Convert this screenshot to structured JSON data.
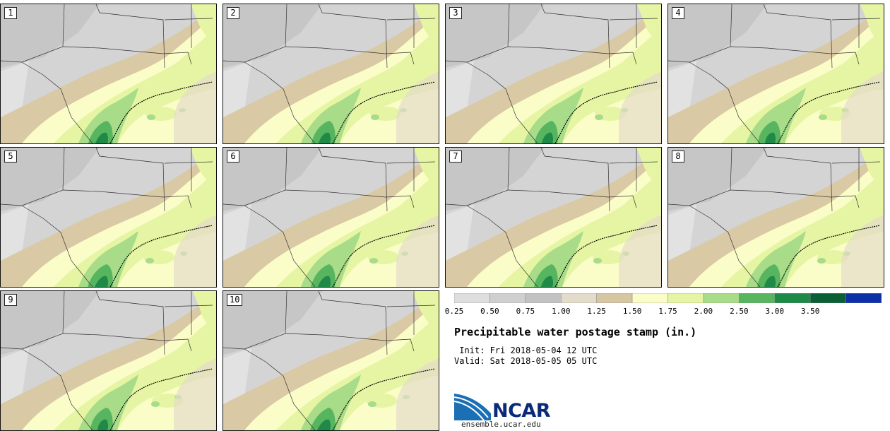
{
  "panels": [
    {
      "label": "1"
    },
    {
      "label": "2"
    },
    {
      "label": "3"
    },
    {
      "label": "4"
    },
    {
      "label": "5"
    },
    {
      "label": "6"
    },
    {
      "label": "7"
    },
    {
      "label": "8"
    },
    {
      "label": "9"
    },
    {
      "label": "10"
    }
  ],
  "colorbar": {
    "ticks": [
      "0.25",
      "0.50",
      "0.75",
      "1.00",
      "1.25",
      "1.50",
      "1.75",
      "2.00",
      "2.50",
      "3.00",
      "3.50"
    ],
    "colors": [
      "#dedede",
      "#cfcfcf",
      "#c2c2c2",
      "#e4dccb",
      "#d6c6a2",
      "#fbfdc8",
      "#e6f5a3",
      "#a8dc88",
      "#57b560",
      "#1f8a47",
      "#0a5f35",
      "#0d2fa8"
    ]
  },
  "title": "Precipitable water postage stamp (in.)",
  "init_line": " Init: Fri 2018-05-04 12 UTC",
  "valid_line": "Valid: Sat 2018-05-05 05 UTC",
  "logo_text": "NCAR",
  "site": "ensemble.ucar.edu"
}
